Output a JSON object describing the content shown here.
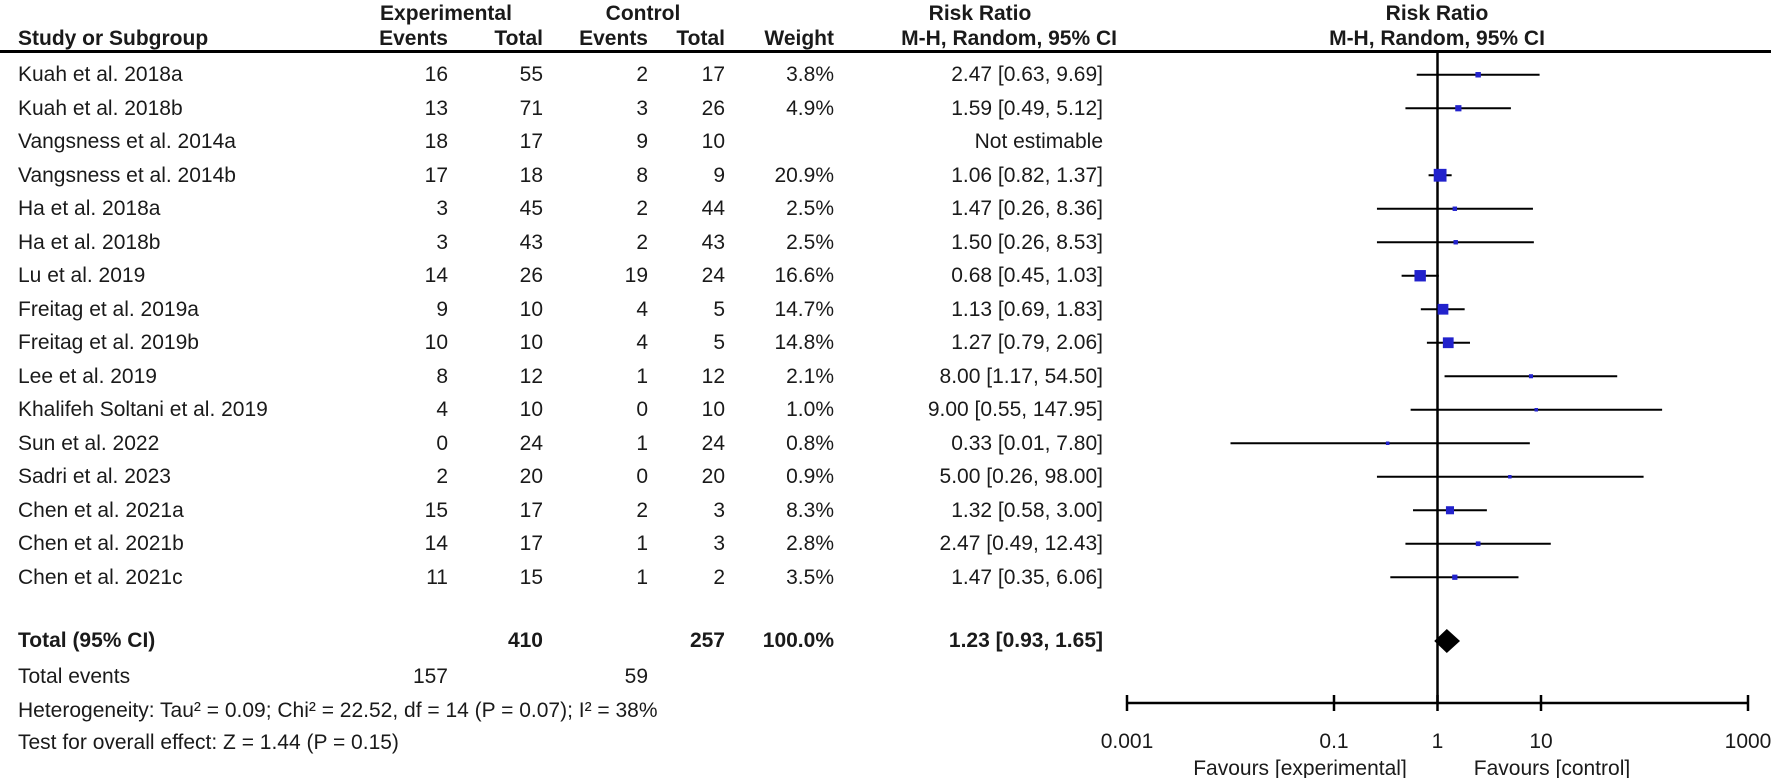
{
  "figure": {
    "columns": {
      "group_experimental": "Experimental",
      "group_control": "Control",
      "risk_ratio": "Risk Ratio",
      "study": "Study or Subgroup",
      "events": "Events",
      "total": "Total",
      "weight": "Weight",
      "mh_random": "M-H, Random, 95% CI"
    }
  },
  "chart_data": {
    "type": "forest",
    "effect_measure": "Risk Ratio",
    "method": "M-H, Random, 95% CI",
    "axis": {
      "scale": "log",
      "min": 0.001,
      "max": 1000,
      "ticks": [
        0.001,
        0.1,
        1,
        10,
        1000
      ],
      "tick_labels": [
        "0.001",
        "0.1",
        "1",
        "10",
        "1000"
      ]
    },
    "favours_left": "Favours [experimental]",
    "favours_right": "Favours [control]",
    "marker_color": "#2222CC",
    "line_color": "#000000",
    "studies": [
      {
        "name": "Kuah et al. 2018a",
        "exp_events": 16,
        "exp_total": 55,
        "ctrl_events": 2,
        "ctrl_total": 17,
        "weight": 3.8,
        "weight_label": "3.8%",
        "rr": 2.47,
        "ci_low": 0.63,
        "ci_high": 9.69,
        "rr_label": "2.47 [0.63, 9.69]"
      },
      {
        "name": "Kuah et al. 2018b",
        "exp_events": 13,
        "exp_total": 71,
        "ctrl_events": 3,
        "ctrl_total": 26,
        "weight": 4.9,
        "weight_label": "4.9%",
        "rr": 1.59,
        "ci_low": 0.49,
        "ci_high": 5.12,
        "rr_label": "1.59 [0.49, 5.12]"
      },
      {
        "name": "Vangsness et al. 2014a",
        "exp_events": 18,
        "exp_total": 17,
        "ctrl_events": 9,
        "ctrl_total": 10,
        "weight": null,
        "weight_label": "",
        "rr": null,
        "ci_low": null,
        "ci_high": null,
        "rr_label": "Not estimable"
      },
      {
        "name": "Vangsness et al. 2014b",
        "exp_events": 17,
        "exp_total": 18,
        "ctrl_events": 8,
        "ctrl_total": 9,
        "weight": 20.9,
        "weight_label": "20.9%",
        "rr": 1.06,
        "ci_low": 0.82,
        "ci_high": 1.37,
        "rr_label": "1.06 [0.82, 1.37]"
      },
      {
        "name": "Ha et al. 2018a",
        "exp_events": 3,
        "exp_total": 45,
        "ctrl_events": 2,
        "ctrl_total": 44,
        "weight": 2.5,
        "weight_label": "2.5%",
        "rr": 1.47,
        "ci_low": 0.26,
        "ci_high": 8.36,
        "rr_label": "1.47 [0.26, 8.36]"
      },
      {
        "name": "Ha et al. 2018b",
        "exp_events": 3,
        "exp_total": 43,
        "ctrl_events": 2,
        "ctrl_total": 43,
        "weight": 2.5,
        "weight_label": "2.5%",
        "rr": 1.5,
        "ci_low": 0.26,
        "ci_high": 8.53,
        "rr_label": "1.50 [0.26, 8.53]"
      },
      {
        "name": "Lu et al. 2019",
        "exp_events": 14,
        "exp_total": 26,
        "ctrl_events": 19,
        "ctrl_total": 24,
        "weight": 16.6,
        "weight_label": "16.6%",
        "rr": 0.68,
        "ci_low": 0.45,
        "ci_high": 1.03,
        "rr_label": "0.68 [0.45, 1.03]"
      },
      {
        "name": "Freitag et al. 2019a",
        "exp_events": 9,
        "exp_total": 10,
        "ctrl_events": 4,
        "ctrl_total": 5,
        "weight": 14.7,
        "weight_label": "14.7%",
        "rr": 1.13,
        "ci_low": 0.69,
        "ci_high": 1.83,
        "rr_label": "1.13 [0.69, 1.83]"
      },
      {
        "name": "Freitag et al. 2019b",
        "exp_events": 10,
        "exp_total": 10,
        "ctrl_events": 4,
        "ctrl_total": 5,
        "weight": 14.8,
        "weight_label": "14.8%",
        "rr": 1.27,
        "ci_low": 0.79,
        "ci_high": 2.06,
        "rr_label": "1.27 [0.79, 2.06]"
      },
      {
        "name": "Lee et al. 2019",
        "exp_events": 8,
        "exp_total": 12,
        "ctrl_events": 1,
        "ctrl_total": 12,
        "weight": 2.1,
        "weight_label": "2.1%",
        "rr": 8.0,
        "ci_low": 1.17,
        "ci_high": 54.5,
        "rr_label": "8.00 [1.17, 54.50]"
      },
      {
        "name": "Khalifeh Soltani et al. 2019",
        "exp_events": 4,
        "exp_total": 10,
        "ctrl_events": 0,
        "ctrl_total": 10,
        "weight": 1.0,
        "weight_label": "1.0%",
        "rr": 9.0,
        "ci_low": 0.55,
        "ci_high": 147.95,
        "rr_label": "9.00 [0.55, 147.95]"
      },
      {
        "name": "Sun et al. 2022",
        "exp_events": 0,
        "exp_total": 24,
        "ctrl_events": 1,
        "ctrl_total": 24,
        "weight": 0.8,
        "weight_label": "0.8%",
        "rr": 0.33,
        "ci_low": 0.01,
        "ci_high": 7.8,
        "rr_label": "0.33 [0.01, 7.80]"
      },
      {
        "name": "Sadri et al. 2023",
        "exp_events": 2,
        "exp_total": 20,
        "ctrl_events": 0,
        "ctrl_total": 20,
        "weight": 0.9,
        "weight_label": "0.9%",
        "rr": 5.0,
        "ci_low": 0.26,
        "ci_high": 98.0,
        "rr_label": "5.00 [0.26, 98.00]"
      },
      {
        "name": "Chen et al. 2021a",
        "exp_events": 15,
        "exp_total": 17,
        "ctrl_events": 2,
        "ctrl_total": 3,
        "weight": 8.3,
        "weight_label": "8.3%",
        "rr": 1.32,
        "ci_low": 0.58,
        "ci_high": 3.0,
        "rr_label": "1.32 [0.58, 3.00]"
      },
      {
        "name": "Chen et al. 2021b",
        "exp_events": 14,
        "exp_total": 17,
        "ctrl_events": 1,
        "ctrl_total": 3,
        "weight": 2.8,
        "weight_label": "2.8%",
        "rr": 2.47,
        "ci_low": 0.49,
        "ci_high": 12.43,
        "rr_label": "2.47 [0.49, 12.43]"
      },
      {
        "name": "Chen et al. 2021c",
        "exp_events": 11,
        "exp_total": 15,
        "ctrl_events": 1,
        "ctrl_total": 2,
        "weight": 3.5,
        "weight_label": "3.5%",
        "rr": 1.47,
        "ci_low": 0.35,
        "ci_high": 6.06,
        "rr_label": "1.47 [0.35, 6.06]"
      }
    ],
    "total": {
      "label": "Total (95% CI)",
      "exp_total": 410,
      "ctrl_total": 257,
      "weight_label": "100.0%",
      "rr": 1.23,
      "ci_low": 0.93,
      "ci_high": 1.65,
      "rr_label": "1.23 [0.93, 1.65]"
    },
    "total_events": {
      "label": "Total events",
      "exp_events": 157,
      "ctrl_events": 59
    },
    "heterogeneity": "Heterogeneity: Tau² = 0.09; Chi² = 22.52, df = 14 (P = 0.07); I² = 38%",
    "overall_effect": "Test for overall effect: Z = 1.44 (P = 0.15)"
  }
}
